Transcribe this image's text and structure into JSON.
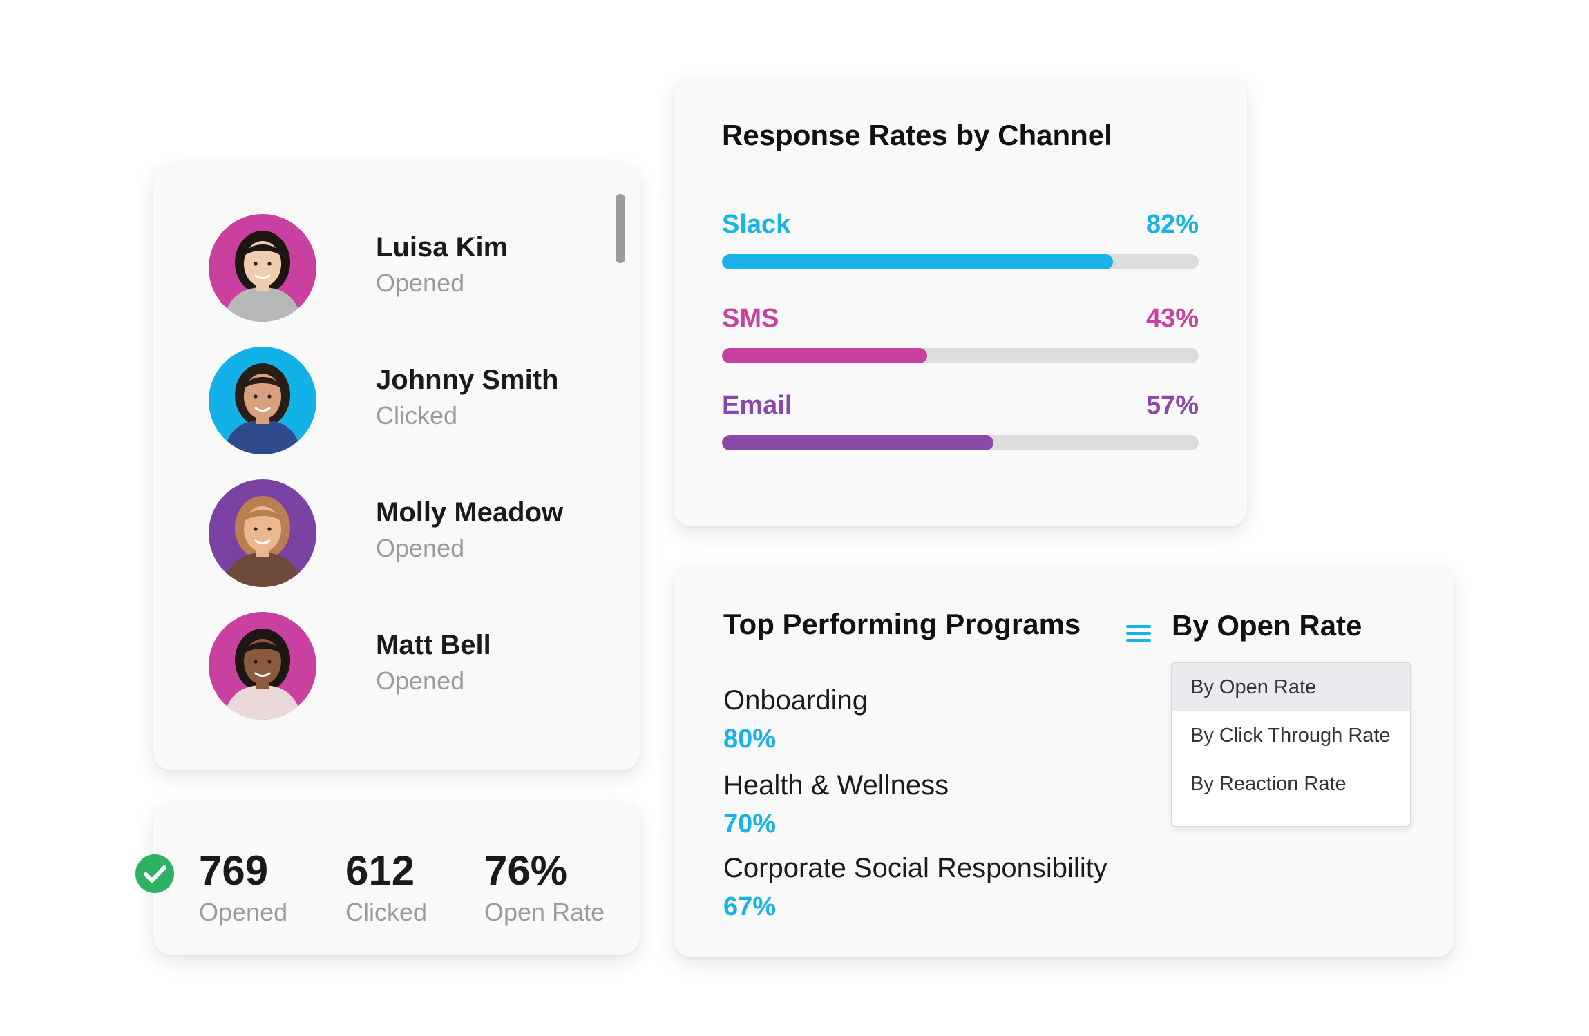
{
  "recipients": [
    {
      "name": "Luisa Kim",
      "status": "Opened",
      "avatar_bg": "#c940a0",
      "skin": "#f1cdb0",
      "hair": "#1c1512",
      "shirt": "#b8b8b8"
    },
    {
      "name": "Johnny Smith",
      "status": "Clicked",
      "avatar_bg": "#12b2e8",
      "skin": "#d9a07f",
      "hair": "#2a1d18",
      "shirt": "#2f4a8a"
    },
    {
      "name": "Molly Meadow",
      "status": "Opened",
      "avatar_bg": "#7a43a3",
      "skin": "#e9b790",
      "hair": "#b88050",
      "shirt": "#6d4a3a"
    },
    {
      "name": "Matt Bell",
      "status": "Opened",
      "avatar_bg": "#c940a0",
      "skin": "#8b5a3c",
      "hair": "#1e1612",
      "shirt": "#e8d8d8"
    }
  ],
  "stats": {
    "opened": {
      "value": "769",
      "label": "Opened"
    },
    "clicked": {
      "value": "612",
      "label": "Clicked"
    },
    "open_rate": {
      "value": "76%",
      "label": "Open Rate"
    },
    "check_color": "#2db163"
  },
  "response_rates": {
    "title": "Response Rates by Channel",
    "channels": [
      {
        "name": "Slack",
        "pct_label": "82%",
        "value": 82,
        "color": "#17b2e8"
      },
      {
        "name": "SMS",
        "pct_label": "43%",
        "value": 43,
        "color": "#c940a0"
      },
      {
        "name": "Email",
        "pct_label": "57%",
        "value": 57,
        "color": "#8a48a8"
      }
    ]
  },
  "programs": {
    "title": "Top Performing Programs",
    "sort_label": "By Open Rate",
    "items": [
      {
        "name": "Onboarding",
        "pct": "80%"
      },
      {
        "name": "Health & Wellness",
        "pct": "70%"
      },
      {
        "name": "Corporate Social Responsibility",
        "pct": "67%"
      }
    ],
    "dropdown_options": [
      "By Open Rate",
      "By Click Through Rate",
      "By Reaction Rate"
    ],
    "selected_index": 0
  }
}
